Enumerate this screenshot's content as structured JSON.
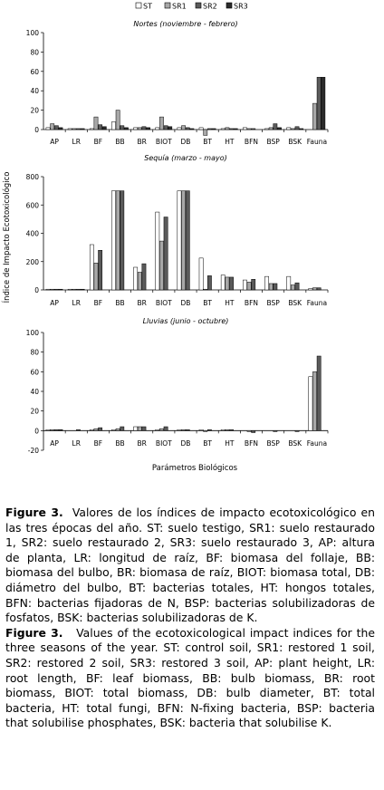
{
  "legend": [
    {
      "key": "ST",
      "color": "#ffffff"
    },
    {
      "key": "SR1",
      "color": "#a8a8a8"
    },
    {
      "key": "SR2",
      "color": "#5a5a5a"
    },
    {
      "key": "SR3",
      "color": "#2b2b2b"
    }
  ],
  "shared_ylabel": "Índice de Impacto Ecotoxicológico",
  "shared_xlabel": "Parámetros Biológicos",
  "chart_data": [
    {
      "type": "bar",
      "title": "Nortes (noviembre - febrero)",
      "ylim": [
        0,
        100
      ],
      "yticks": [
        0,
        20,
        40,
        60,
        80,
        100
      ],
      "categories": [
        "AP",
        "LR",
        "BF",
        "BB",
        "BR",
        "BIOT",
        "DB",
        "BT",
        "HT",
        "BFN",
        "BSP",
        "BSK",
        "Fauna"
      ],
      "series": [
        {
          "name": "ST",
          "values": [
            2,
            1,
            1,
            8,
            2,
            2,
            2,
            2,
            1,
            2,
            1,
            2,
            0
          ]
        },
        {
          "name": "SR1",
          "values": [
            6,
            1,
            13,
            20,
            2,
            13,
            4,
            -6,
            2,
            1,
            2,
            1,
            27
          ]
        },
        {
          "name": "SR2",
          "values": [
            4,
            1,
            5,
            4,
            3,
            4,
            2,
            1,
            1,
            1,
            6,
            3,
            54
          ]
        },
        {
          "name": "SR3",
          "values": [
            2,
            1,
            3,
            2,
            2,
            3,
            1,
            1,
            1,
            0,
            2,
            1,
            54
          ]
        }
      ]
    },
    {
      "type": "bar",
      "title": "Sequía (marzo - mayo)",
      "ylim": [
        0,
        800
      ],
      "yticks": [
        0,
        200,
        400,
        600,
        800
      ],
      "categories": [
        "AP",
        "LR",
        "BF",
        "BB",
        "BR",
        "BIOT",
        "DB",
        "BT",
        "HT",
        "BFN",
        "BSP",
        "BSK",
        "Fauna"
      ],
      "series": [
        {
          "name": "ST",
          "values": [
            5,
            5,
            320,
            700,
            160,
            550,
            700,
            225,
            105,
            70,
            95,
            95,
            10
          ]
        },
        {
          "name": "SR1",
          "values": [
            5,
            5,
            190,
            700,
            125,
            345,
            700,
            5,
            90,
            55,
            45,
            35,
            15
          ]
        },
        {
          "name": "SR2",
          "values": [
            5,
            5,
            280,
            700,
            185,
            515,
            700,
            100,
            90,
            75,
            45,
            50,
            15
          ]
        },
        {
          "name": "SR3",
          "values": [
            5,
            5,
            0,
            0,
            0,
            0,
            0,
            0,
            0,
            0,
            0,
            0,
            0
          ]
        }
      ]
    },
    {
      "type": "bar",
      "title": "Lluvias (junio - octubre)",
      "ylim": [
        -20,
        100
      ],
      "yticks": [
        -20,
        0,
        20,
        40,
        60,
        80,
        100
      ],
      "categories": [
        "AP",
        "LR",
        "BF",
        "BB",
        "BR",
        "BIOT",
        "DB",
        "BT",
        "HT",
        "BFN",
        "BSP",
        "BSK",
        "Fauna"
      ],
      "series": [
        {
          "name": "ST",
          "values": [
            1,
            0,
            1,
            1,
            4,
            1,
            1,
            1,
            1,
            0,
            0,
            0,
            55
          ]
        },
        {
          "name": "SR1",
          "values": [
            1,
            0,
            2,
            2,
            4,
            2,
            1,
            -1,
            1,
            -1,
            0,
            0,
            60
          ]
        },
        {
          "name": "SR2",
          "values": [
            1,
            1,
            3,
            4,
            4,
            4,
            1,
            1,
            1,
            -2,
            -1,
            -1,
            76
          ]
        },
        {
          "name": "SR3",
          "values": [
            1,
            0,
            0,
            0,
            0,
            0,
            0,
            0,
            0,
            0,
            0,
            0,
            0
          ]
        }
      ]
    }
  ],
  "caption": {
    "es_label": "Figure 3.",
    "es_text": "Valores de los índices de impacto ecotoxicológico en las tres épocas del año. ST: suelo testigo, SR1: suelo restaurado 1, SR2: suelo restaurado 2, SR3: suelo restaurado 3, AP: altura de planta, LR: longitud de raíz, BF: biomasa del follaje, BB: biomasa del bulbo, BR: biomasa de raíz, BIOT: biomasa total, DB: diámetro del bulbo, BT: bacterias totales, HT: hongos totales, BFN: bacterias fijadoras de N, BSP: bacterias solubilizadoras de fosfatos, BSK: bacterias solubilizadoras de K.",
    "en_label": "Figure 3.",
    "en_text": "Values of the ecotoxicological impact indices for the three seasons of the year. ST: control soil, SR1: restored 1 soil, SR2: restored 2 soil, SR3: restored 3 soil, AP: plant height, LR: root length, BF: leaf biomass, BB: bulb biomass, BR: root biomass, BIOT: total biomass, DB: bulb diameter, BT: total bacteria, HT: total fungi, BFN: N-fixing bacteria, BSP: bacteria that solubilise phosphates, BSK: bacteria that solubilise K."
  }
}
